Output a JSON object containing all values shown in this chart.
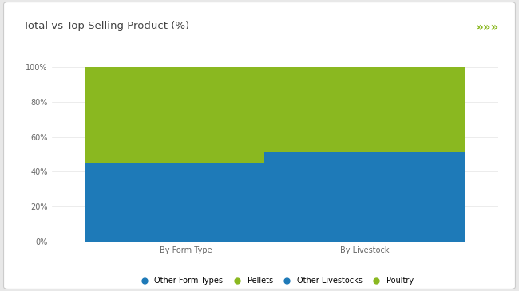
{
  "title": "Total vs Top Selling Product (%)",
  "categories": [
    "By Form Type",
    "By Livestock"
  ],
  "bar1_blue": 45,
  "bar1_green": 55,
  "bar2_blue": 51,
  "bar2_green": 49,
  "blue_color": "#1e7ab8",
  "green_color": "#8ab820",
  "ylim": [
    0,
    100
  ],
  "yticks": [
    0,
    20,
    40,
    60,
    80,
    100
  ],
  "ytick_labels": [
    "0%",
    "20%",
    "40%",
    "60%",
    "80%",
    "100%"
  ],
  "outer_bg": "#e8e8e8",
  "card_bg": "#ffffff",
  "title_text": "Total vs Top Selling Product (%)",
  "title_fontsize": 9.5,
  "accent_line_color": "#8ab820",
  "arrow_color": "#8ab820",
  "bar_width": 0.45,
  "x_positions": [
    0.3,
    0.7
  ],
  "legend": [
    {
      "label": "Other Form Types",
      "color": "#1e7ab8"
    },
    {
      "label": "Pellets",
      "color": "#8ab820"
    },
    {
      "label": "Other Livestocks",
      "color": "#1e7ab8"
    },
    {
      "label": "Poultry",
      "color": "#8ab820"
    }
  ],
  "legend_fontsize": 7,
  "tick_fontsize": 7,
  "xtick_fontsize": 7
}
